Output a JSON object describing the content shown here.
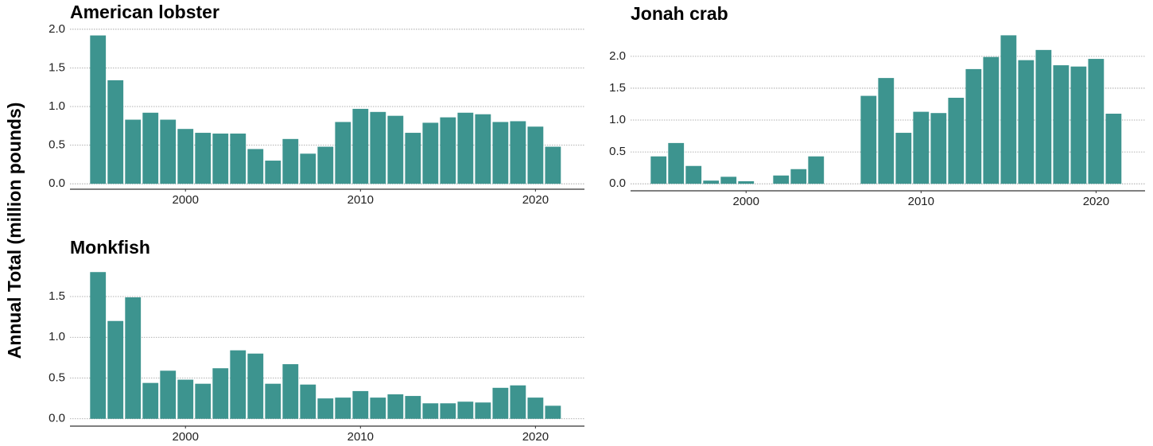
{
  "ylabel": "Annual Total (million pounds)",
  "chart_data": [
    {
      "type": "bar",
      "title": "American lobster",
      "color": "#3d948f",
      "grid": true,
      "x": [
        1995,
        1996,
        1997,
        1998,
        1999,
        2000,
        2001,
        2002,
        2003,
        2004,
        2005,
        2006,
        2007,
        2008,
        2009,
        2010,
        2011,
        2012,
        2013,
        2014,
        2015,
        2016,
        2017,
        2018,
        2019,
        2020,
        2021
      ],
      "values": [
        1.92,
        1.34,
        0.83,
        0.92,
        0.83,
        0.71,
        0.66,
        0.65,
        0.65,
        0.45,
        0.3,
        0.58,
        0.39,
        0.48,
        0.8,
        0.97,
        0.93,
        0.88,
        0.66,
        0.79,
        0.86,
        0.92,
        0.9,
        0.8,
        0.81,
        0.74,
        0.48
      ],
      "xlim": [
        1993.4,
        2022.8
      ],
      "xticks": [
        2000,
        2010,
        2020
      ],
      "ylim": [
        -0.07,
        2.07
      ],
      "yticks": [
        {
          "value": 0,
          "label": "0.0"
        },
        0.5,
        {
          "value": 1,
          "label": "1.0"
        },
        1.5,
        {
          "value": 2,
          "label": "2.0"
        }
      ]
    },
    {
      "type": "bar",
      "title": "Jonah crab",
      "color": "#3d948f",
      "grid": true,
      "x": [
        1995,
        1996,
        1997,
        1998,
        1999,
        2000,
        2001,
        2002,
        2003,
        2004,
        2005,
        2006,
        2007,
        2008,
        2009,
        2010,
        2011,
        2012,
        2013,
        2014,
        2015,
        2016,
        2017,
        2018,
        2019,
        2020,
        2021
      ],
      "values": [
        0.43,
        0.64,
        0.28,
        0.05,
        0.11,
        0.04,
        null,
        0.13,
        0.23,
        0.43,
        null,
        null,
        1.38,
        1.66,
        0.8,
        1.13,
        1.11,
        1.35,
        1.8,
        1.99,
        2.33,
        1.94,
        2.1,
        1.86,
        1.84,
        1.96,
        1.1
      ],
      "xlim": [
        1993.4,
        2022.8
      ],
      "xticks": [
        2000,
        2010,
        2020
      ],
      "ylim": [
        -0.11,
        2.41
      ],
      "yticks": [
        {
          "value": 0,
          "label": "0.0"
        },
        0.5,
        {
          "value": 1,
          "label": "1.0"
        },
        1.5,
        {
          "value": 2,
          "label": "2.0"
        }
      ]
    },
    {
      "type": "bar",
      "title": "Monkfish",
      "color": "#3d948f",
      "grid": true,
      "x": [
        1995,
        1996,
        1997,
        1998,
        1999,
        2000,
        2001,
        2002,
        2003,
        2004,
        2005,
        2006,
        2007,
        2008,
        2009,
        2010,
        2011,
        2012,
        2013,
        2014,
        2015,
        2016,
        2017,
        2018,
        2019,
        2020,
        2021
      ],
      "values": [
        1.8,
        1.2,
        1.49,
        0.44,
        0.59,
        0.48,
        0.43,
        0.62,
        0.84,
        0.8,
        0.43,
        0.67,
        0.42,
        0.25,
        0.26,
        0.34,
        0.26,
        0.3,
        0.28,
        0.19,
        0.19,
        0.21,
        0.2,
        0.38,
        0.41,
        0.26,
        0.16
      ],
      "xlim": [
        1993.4,
        2022.8
      ],
      "xticks": [
        2000,
        2010,
        2020
      ],
      "ylim": [
        -0.09,
        1.89
      ],
      "yticks": [
        {
          "value": 0,
          "label": "0.0"
        },
        0.5,
        {
          "value": 1,
          "label": "1.0"
        },
        1.5
      ]
    }
  ]
}
